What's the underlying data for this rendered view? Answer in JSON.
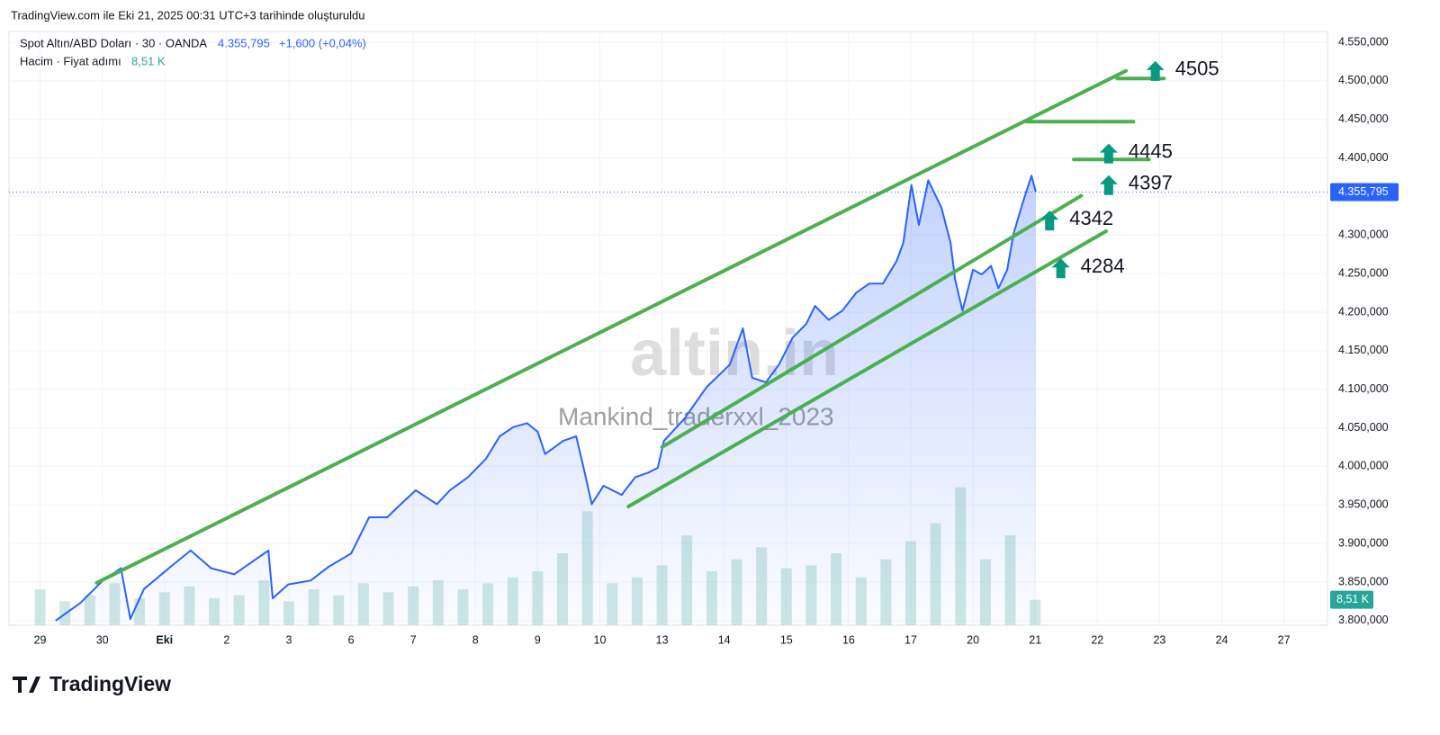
{
  "header": {
    "caption": "TradingView.com ile Eki 21, 2025 00:31 UTC+3 tarihinde oluşturuldu",
    "brand": "TradingView"
  },
  "chart_data": {
    "type": "line",
    "title": "Spot Altın/ABD Doları · 30 · OANDA",
    "change": "+1,600 (+0,04%)",
    "last": {
      "value": 4355795,
      "label": "4.355,795"
    },
    "volume_title": "Hacim · Fiyat adımı",
    "watermarks": [
      "altin.in",
      "Mankind_traderxxl_2023"
    ],
    "xlim": [
      -0.5,
      20.7
    ],
    "xticks": [
      {
        "value": 0,
        "label": "29"
      },
      {
        "value": 1,
        "label": "30"
      },
      {
        "value": 2,
        "label": "Eki"
      },
      {
        "value": 3,
        "label": "2"
      },
      {
        "value": 4,
        "label": "3"
      },
      {
        "value": 5,
        "label": "6"
      },
      {
        "value": 6,
        "label": "7"
      },
      {
        "value": 7,
        "label": "8"
      },
      {
        "value": 8,
        "label": "9"
      },
      {
        "value": 9,
        "label": "10"
      },
      {
        "value": 10,
        "label": "13"
      },
      {
        "value": 11,
        "label": "14"
      },
      {
        "value": 12,
        "label": "15"
      },
      {
        "value": 13,
        "label": "16"
      },
      {
        "value": 14,
        "label": "17"
      },
      {
        "value": 15,
        "label": "20"
      },
      {
        "value": 16,
        "label": "21"
      },
      {
        "value": 17,
        "label": "22"
      },
      {
        "value": 18,
        "label": "23"
      },
      {
        "value": 19,
        "label": "24"
      },
      {
        "value": 20,
        "label": "27"
      }
    ],
    "ylim": [
      3794000,
      4564000
    ],
    "yticks": [
      {
        "value": 3800000,
        "label": "3.800,000"
      },
      {
        "value": 3850000,
        "label": "3.850,000"
      },
      {
        "value": 3900000,
        "label": "3.900,000"
      },
      {
        "value": 3950000,
        "label": "3.950,000"
      },
      {
        "value": 4000000,
        "label": "4.000,000"
      },
      {
        "value": 4050000,
        "label": "4.050,000"
      },
      {
        "value": 4100000,
        "label": "4.100,000"
      },
      {
        "value": 4150000,
        "label": "4.150,000"
      },
      {
        "value": 4200000,
        "label": "4.200,000"
      },
      {
        "value": 4250000,
        "label": "4.250,000"
      },
      {
        "value": 4300000,
        "label": "4.300,000"
      },
      {
        "value": 4350000,
        "label": "4.350,000"
      },
      {
        "value": 4400000,
        "label": "4.400,000"
      },
      {
        "value": 4450000,
        "label": "4.450,000"
      },
      {
        "value": 4500000,
        "label": "4.500,000"
      },
      {
        "value": 4550000,
        "label": "4.550,000"
      }
    ],
    "grid": true,
    "series": [
      {
        "name": "Spot Altın/ABD Doları",
        "color": "#2962ff",
        "x": [
          0.25,
          0.65,
          1.01,
          1.3,
          1.45,
          1.67,
          2.1,
          2.42,
          2.75,
          3.12,
          3.67,
          3.74,
          3.99,
          4.35,
          4.64,
          5.0,
          5.29,
          5.58,
          5.8,
          6.04,
          6.38,
          6.59,
          6.88,
          7.17,
          7.39,
          7.61,
          7.83,
          8.0,
          8.12,
          8.41,
          8.62,
          8.74,
          8.87,
          9.06,
          9.35,
          9.57,
          9.78,
          9.93,
          10.03,
          10.36,
          10.72,
          11.09,
          11.3,
          11.45,
          11.67,
          11.88,
          12.1,
          12.32,
          12.46,
          12.68,
          12.9,
          13.12,
          13.33,
          13.55,
          13.77,
          13.88,
          14.01,
          14.13,
          14.28,
          14.49,
          14.64,
          14.71,
          14.83,
          15.0,
          15.14,
          15.29,
          15.41,
          15.55,
          15.65,
          15.8,
          15.94,
          16.01
        ],
        "values": [
          3800000,
          3823000,
          3852000,
          3868000,
          3802000,
          3841000,
          3870000,
          3891000,
          3868000,
          3860000,
          3891000,
          3829000,
          3847000,
          3852000,
          3870000,
          3887000,
          3934000,
          3934000,
          3951000,
          3969000,
          3951000,
          3969000,
          3986000,
          4010000,
          4039000,
          4051000,
          4056000,
          4045000,
          4016000,
          4033000,
          4039000,
          3998000,
          3951000,
          3975000,
          3963000,
          3986000,
          3992000,
          3998000,
          4033000,
          4062000,
          4103000,
          4132000,
          4179000,
          4115000,
          4109000,
          4132000,
          4167000,
          4185000,
          4208000,
          4190000,
          4202000,
          4225000,
          4237000,
          4237000,
          4266000,
          4290000,
          4365000,
          4313000,
          4371000,
          4336000,
          4290000,
          4243000,
          4202000,
          4255000,
          4249000,
          4260000,
          4231000,
          4255000,
          4301000,
          4342000,
          4377000,
          4356000
        ]
      }
    ],
    "volume": {
      "name": "Hacim",
      "color": "#a8d5cd",
      "vlim": [
        0,
        60
      ],
      "last_label": "8,51 K",
      "x": [
        0,
        0.4,
        0.8,
        1.2,
        1.6,
        2.0,
        2.4,
        2.8,
        3.2,
        3.6,
        4.0,
        4.4,
        4.8,
        5.2,
        5.6,
        6.0,
        6.4,
        6.8,
        7.2,
        7.6,
        8.0,
        8.4,
        8.8,
        9.2,
        9.6,
        10.0,
        10.4,
        10.8,
        11.2,
        11.6,
        12.0,
        12.4,
        12.8,
        13.2,
        13.6,
        14.0,
        14.4,
        14.8,
        15.2,
        15.6,
        16.0
      ],
      "values": [
        12,
        8,
        10,
        14,
        9,
        11,
        13,
        9,
        10,
        15,
        8,
        12,
        10,
        14,
        11,
        13,
        15,
        12,
        14,
        16,
        18,
        24,
        38,
        14,
        16,
        20,
        30,
        18,
        22,
        26,
        19,
        20,
        24,
        16,
        22,
        28,
        34,
        46,
        22,
        30,
        8.51
      ]
    },
    "trendlines": [
      {
        "color": "#4caf50",
        "x": [
          0.91,
          17.46
        ],
        "values": [
          3849000,
          4513000
        ]
      },
      {
        "color": "#4caf50",
        "x": [
          10.0,
          16.74
        ],
        "values": [
          4025000,
          4351000
        ]
      },
      {
        "color": "#4caf50",
        "x": [
          9.46,
          17.14
        ],
        "values": [
          3948000,
          4305000
        ]
      },
      {
        "color": "#4caf50",
        "x": [
          17.32,
          18.07
        ],
        "values": [
          4503000,
          4503000
        ]
      },
      {
        "color": "#4caf50",
        "x": [
          15.87,
          17.58
        ],
        "values": [
          4447000,
          4447000
        ]
      },
      {
        "color": "#4caf50",
        "x": [
          16.62,
          17.83
        ],
        "values": [
          4398000,
          4398000
        ]
      }
    ],
    "annotations": [
      {
        "text": "4505",
        "x": 18.25,
        "y": 4500000
      },
      {
        "text": "4445",
        "x": 17.5,
        "y": 4393000
      },
      {
        "text": "4397",
        "x": 17.5,
        "y": 4352000
      },
      {
        "text": "4342",
        "x": 16.55,
        "y": 4306000
      },
      {
        "text": "4284",
        "x": 16.73,
        "y": 4244000
      }
    ]
  }
}
